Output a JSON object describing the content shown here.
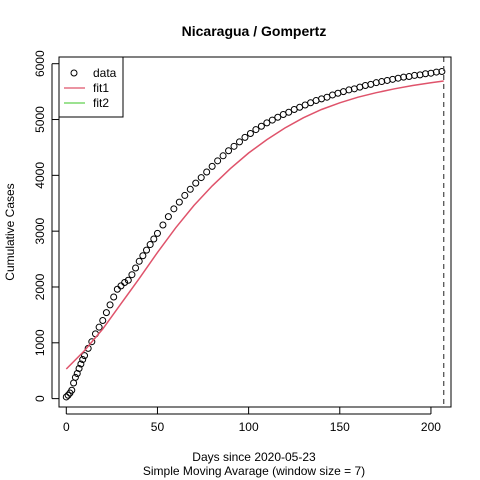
{
  "chart_data": {
    "type": "scatter",
    "title": "Nicaragua / Gompertz",
    "xlabel": "Days since 2020-05-23",
    "subtitle": "Simple Moving Avarage (window size = 7)",
    "ylabel": "Cumulative Cases",
    "xlim": [
      -4,
      211
    ],
    "ylim": [
      -150,
      6120
    ],
    "x_ticks": [
      0,
      50,
      100,
      150,
      200
    ],
    "y_ticks": [
      0,
      1000,
      2000,
      3000,
      4000,
      5000,
      6000
    ],
    "vline_x": 207,
    "legend": {
      "position": "top-left",
      "entries": [
        "data",
        "fit1",
        "fit2"
      ]
    },
    "colors": {
      "data": "#000000",
      "fit1": "#DF536B",
      "fit2": "#61D04F",
      "vline": "#555555"
    },
    "series": [
      {
        "name": "data",
        "mark": "open-circle",
        "x": [
          0,
          1,
          2,
          3,
          4,
          5,
          6,
          7,
          8,
          9,
          10,
          12,
          14,
          16,
          18,
          20,
          22,
          24,
          26,
          28,
          30,
          32,
          34,
          36,
          38,
          40,
          42,
          44,
          46,
          48,
          50,
          53,
          56,
          59,
          62,
          65,
          68,
          71,
          74,
          77,
          80,
          83,
          86,
          89,
          92,
          95,
          98,
          101,
          104,
          107,
          110,
          113,
          116,
          119,
          122,
          125,
          128,
          131,
          134,
          137,
          140,
          143,
          146,
          149,
          152,
          155,
          158,
          161,
          164,
          167,
          170,
          173,
          176,
          179,
          182,
          185,
          188,
          191,
          194,
          197,
          200,
          203,
          206
        ],
        "y": [
          30,
          60,
          100,
          150,
          280,
          380,
          450,
          540,
          620,
          700,
          770,
          900,
          1020,
          1160,
          1280,
          1400,
          1540,
          1680,
          1820,
          1960,
          2020,
          2080,
          2120,
          2220,
          2340,
          2460,
          2560,
          2660,
          2760,
          2860,
          2960,
          3110,
          3260,
          3400,
          3520,
          3640,
          3750,
          3860,
          3960,
          4060,
          4160,
          4260,
          4350,
          4440,
          4520,
          4600,
          4680,
          4750,
          4820,
          4880,
          4940,
          4990,
          5040,
          5090,
          5130,
          5180,
          5220,
          5260,
          5300,
          5340,
          5370,
          5400,
          5440,
          5470,
          5500,
          5530,
          5550,
          5580,
          5610,
          5630,
          5660,
          5680,
          5700,
          5720,
          5740,
          5760,
          5770,
          5790,
          5800,
          5820,
          5830,
          5850,
          5860
        ]
      },
      {
        "name": "fit1",
        "mark": "line",
        "x": [
          0,
          10,
          20,
          30,
          40,
          50,
          60,
          70,
          80,
          90,
          100,
          110,
          120,
          130,
          140,
          150,
          160,
          170,
          180,
          190,
          200,
          207
        ],
        "y": [
          530,
          860,
          1250,
          1700,
          2150,
          2620,
          3060,
          3460,
          3810,
          4120,
          4400,
          4640,
          4850,
          5030,
          5180,
          5300,
          5400,
          5480,
          5550,
          5610,
          5660,
          5690
        ]
      },
      {
        "name": "fit2",
        "mark": "line",
        "x": [],
        "y": []
      }
    ]
  }
}
